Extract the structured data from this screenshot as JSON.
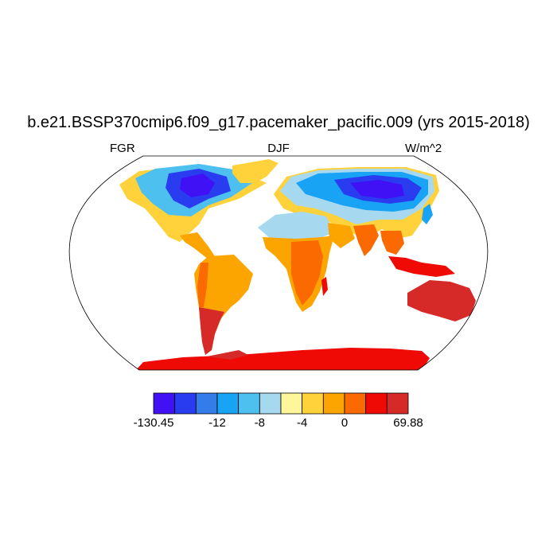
{
  "title": "b.e21.BSSP370cmip6.f09_g17.pacemaker_pacific.009 (yrs 2015-2018)",
  "subtitle_left": "FGR",
  "subtitle_center": "DJF",
  "subtitle_right": "W/m^2",
  "colorbar": {
    "colors": [
      "#3f11f4",
      "#2a3cf0",
      "#347de8",
      "#18a3f5",
      "#4ec0f0",
      "#a6d8f0",
      "#fff59a",
      "#ffd23c",
      "#fca500",
      "#fb6a00",
      "#ef0a06",
      "#d62a29"
    ],
    "labels": [
      "-130.45",
      "-12",
      "-8",
      "-4",
      "0",
      "69.88"
    ],
    "label_boundaries": [
      0,
      3,
      5,
      7,
      9,
      12
    ]
  }
}
